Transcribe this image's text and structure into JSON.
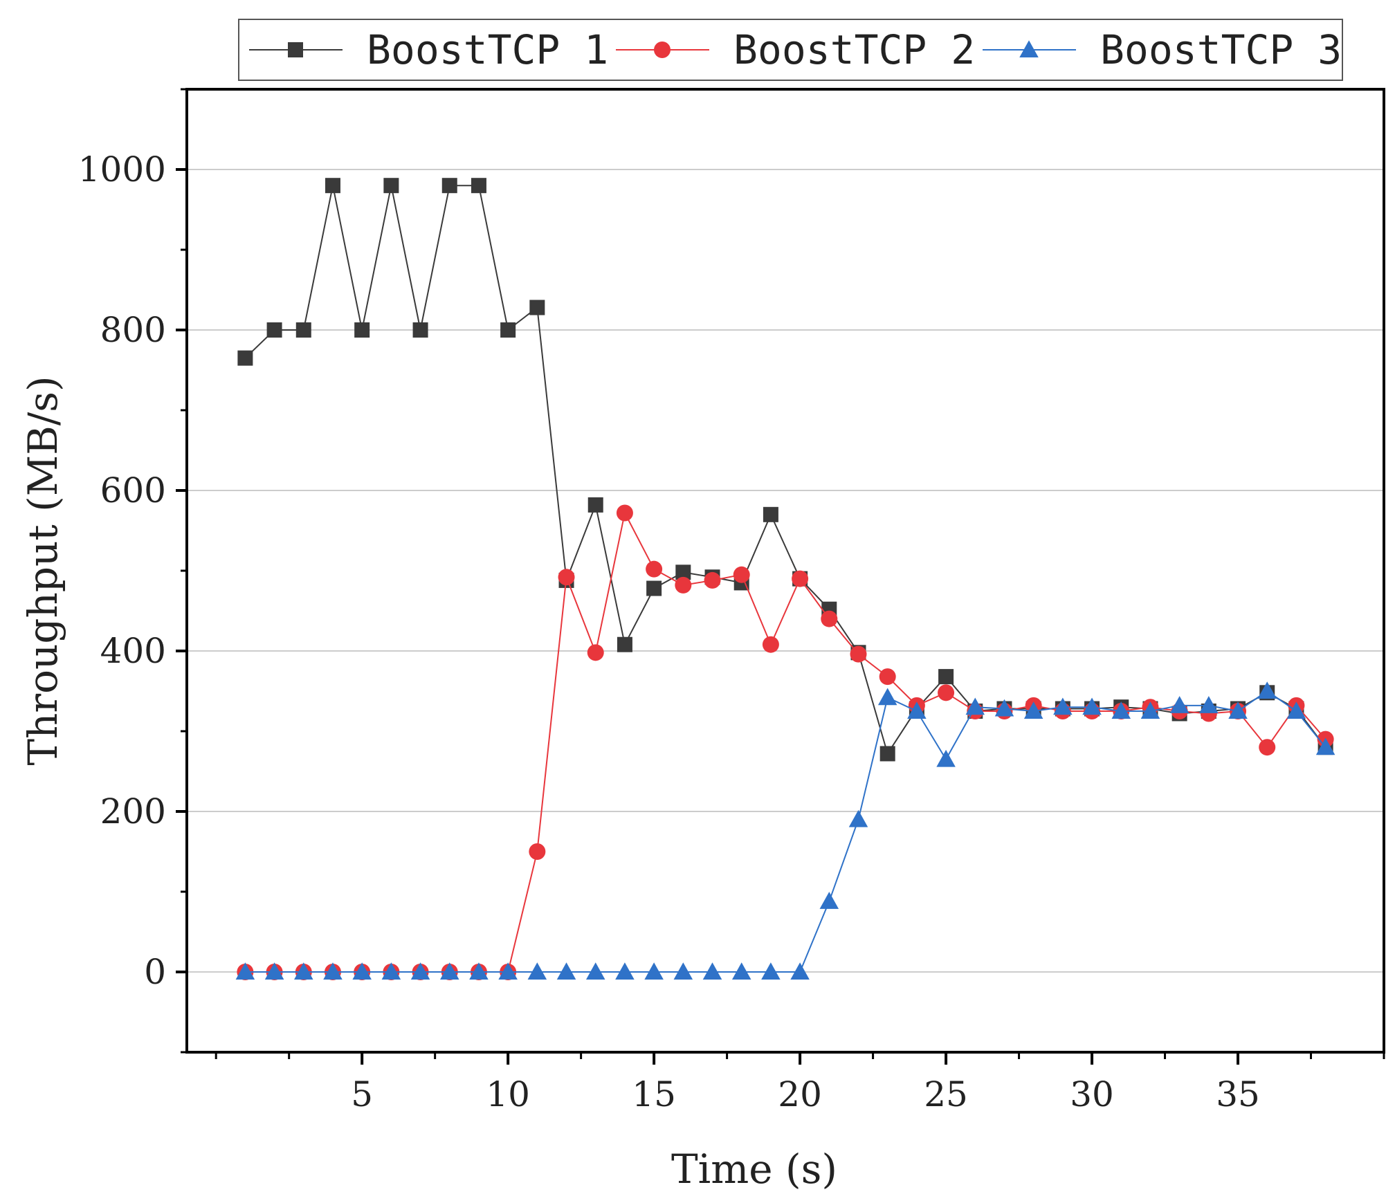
{
  "chart_data": {
    "type": "line",
    "title": "",
    "xlabel": "Time (s)",
    "ylabel": "Throughput (MB/s)",
    "xlim": [
      -1,
      40
    ],
    "ylim": [
      -100,
      1100
    ],
    "xticks": [
      5,
      10,
      15,
      20,
      25,
      30,
      35
    ],
    "xtick_labels": [
      "5",
      "10",
      "15",
      "20",
      "25",
      "30",
      "35"
    ],
    "yticks": [
      0,
      200,
      400,
      600,
      800,
      1000
    ],
    "ytick_labels": [
      "0",
      "200",
      "400",
      "600",
      "800",
      "1000"
    ],
    "grid": "horizontal",
    "legend_position": "top",
    "x": [
      1,
      2,
      3,
      4,
      5,
      6,
      7,
      8,
      9,
      10,
      11,
      12,
      13,
      14,
      15,
      16,
      17,
      18,
      19,
      20,
      21,
      22,
      23,
      24,
      25,
      26,
      27,
      28,
      29,
      30,
      31,
      32,
      33,
      34,
      35,
      36,
      37,
      38
    ],
    "series": [
      {
        "name": "BoostTCP 1",
        "color": "#3a3a3a",
        "marker": "square",
        "values": [
          765,
          800,
          800,
          980,
          800,
          980,
          800,
          980,
          980,
          800,
          828,
          488,
          582,
          408,
          478,
          498,
          492,
          485,
          570,
          490,
          452,
          398,
          272,
          328,
          368,
          325,
          328,
          328,
          328,
          328,
          330,
          328,
          322,
          325,
          328,
          348,
          328,
          280
        ]
      },
      {
        "name": "BoostTCP 2",
        "color": "#e8363c",
        "marker": "circle",
        "values": [
          0,
          0,
          0,
          0,
          0,
          0,
          0,
          0,
          0,
          0,
          150,
          492,
          398,
          572,
          502,
          482,
          488,
          495,
          408,
          490,
          440,
          396,
          368,
          332,
          348,
          325,
          325,
          332,
          325,
          325,
          325,
          330,
          325,
          322,
          325,
          280,
          332,
          290
        ]
      },
      {
        "name": "BoostTCP 3",
        "color": "#2f72c8",
        "marker": "triangle",
        "values": [
          0,
          0,
          0,
          0,
          0,
          0,
          0,
          0,
          0,
          0,
          0,
          0,
          0,
          0,
          0,
          0,
          0,
          0,
          0,
          0,
          88,
          190,
          342,
          325,
          265,
          330,
          328,
          325,
          330,
          330,
          325,
          325,
          332,
          332,
          325,
          350,
          325,
          280
        ]
      }
    ]
  }
}
